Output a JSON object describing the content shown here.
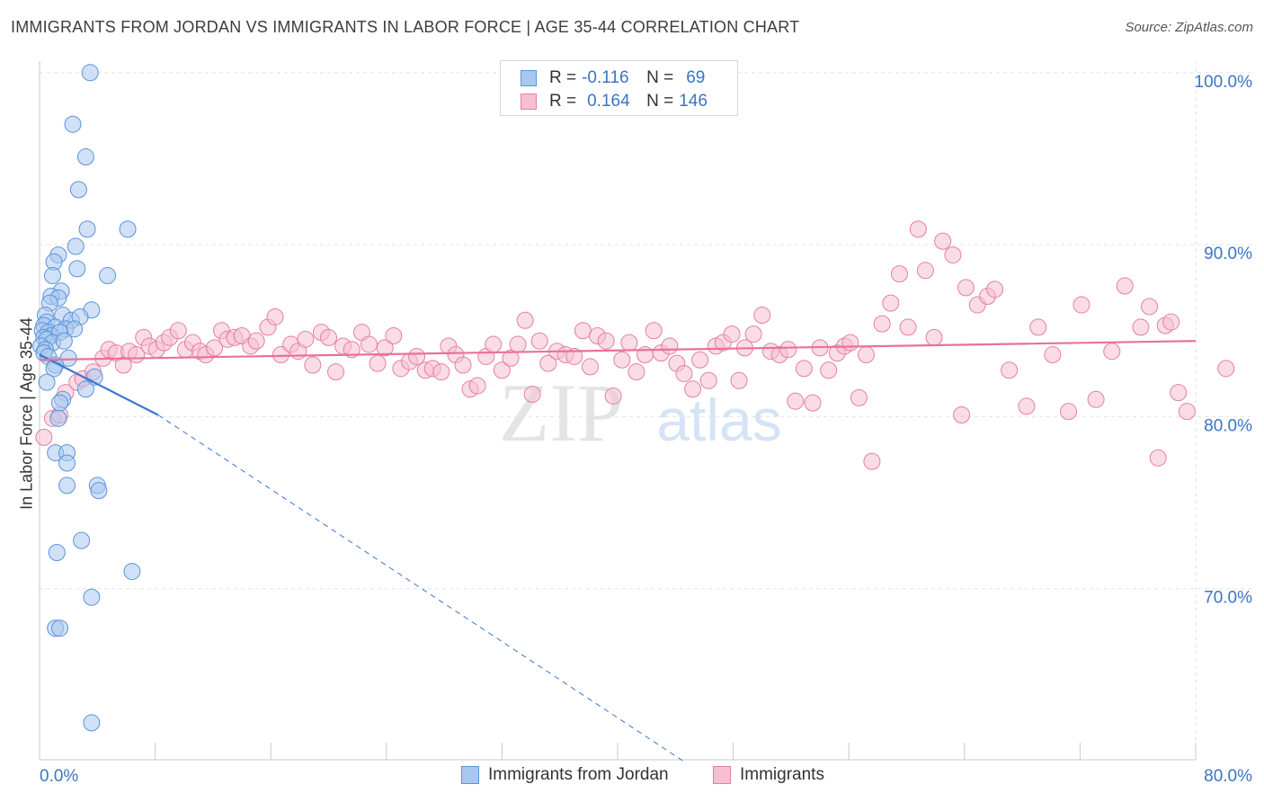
{
  "header": {
    "title": "IMMIGRANTS FROM JORDAN VS IMMIGRANTS IN LABOR FORCE | AGE 35-44 CORRELATION CHART",
    "source": "Source: ZipAtlas.com"
  },
  "watermark": {
    "zip": "ZIP",
    "atlas": "atlas"
  },
  "legend": {
    "rows": [
      {
        "r_label": "R =",
        "r_value": "-0.116",
        "n_label": "N =",
        "n_value": "69"
      },
      {
        "r_label": "R =",
        "r_value": "0.164",
        "n_label": "N =",
        "n_value": "146"
      }
    ]
  },
  "bottom_legend": [
    {
      "label": "Immigrants from Jordan"
    },
    {
      "label": "Immigrants"
    }
  ],
  "colors": {
    "blue_fill": "#a9c8f0",
    "blue_stroke": "#5b93d8",
    "blue_line": "#3a75d0",
    "pink_fill": "#f6c0d2",
    "pink_stroke": "#e57fa2",
    "pink_line": "#e8719a",
    "tick_text": "#3a75c4",
    "grid": "#e2e2e2"
  },
  "chart_data": {
    "type": "scatter",
    "title": "IMMIGRANTS FROM JORDAN VS IMMIGRANTS IN LABOR FORCE | AGE 35-44 CORRELATION CHART",
    "xlabel": "",
    "ylabel": "In Labor Force | Age 35-44",
    "xlim": [
      0,
      80
    ],
    "ylim": [
      60,
      102
    ],
    "x_tick_labels": [
      "0.0%",
      "80.0%"
    ],
    "y_ticks": [
      70,
      80,
      90,
      100
    ],
    "y_tick_labels": [
      "70.0%",
      "80.0%",
      "90.0%",
      "100.0%"
    ],
    "grid": true,
    "series": [
      {
        "name": "Immigrants from Jordan",
        "R": -0.116,
        "N": 69,
        "trend": {
          "solid": [
            [
              0,
              83.6
            ],
            [
              8.2,
              80.1
            ]
          ],
          "dashed": [
            [
              8.2,
              80.1
            ],
            [
              44.5,
              60
            ]
          ]
        },
        "points": [
          [
            3.5,
            100.0
          ],
          [
            2.3,
            97.0
          ],
          [
            3.2,
            95.1
          ],
          [
            2.7,
            93.2
          ],
          [
            3.3,
            90.9
          ],
          [
            6.1,
            90.9
          ],
          [
            2.5,
            89.9
          ],
          [
            1.3,
            89.4
          ],
          [
            1.0,
            89.0
          ],
          [
            2.6,
            88.6
          ],
          [
            0.9,
            88.2
          ],
          [
            4.7,
            88.2
          ],
          [
            1.5,
            87.3
          ],
          [
            0.8,
            87.0
          ],
          [
            1.3,
            86.9
          ],
          [
            0.7,
            86.6
          ],
          [
            3.6,
            86.2
          ],
          [
            0.4,
            85.9
          ],
          [
            1.6,
            85.9
          ],
          [
            2.2,
            85.6
          ],
          [
            2.8,
            85.8
          ],
          [
            0.5,
            85.5
          ],
          [
            0.3,
            85.3
          ],
          [
            1.1,
            85.2
          ],
          [
            1.8,
            85.1
          ],
          [
            2.4,
            85.1
          ],
          [
            0.2,
            85.0
          ],
          [
            0.6,
            84.9
          ],
          [
            0.8,
            84.7
          ],
          [
            1.4,
            84.9
          ],
          [
            0.3,
            84.6
          ],
          [
            0.5,
            84.5
          ],
          [
            0.9,
            84.3
          ],
          [
            1.7,
            84.4
          ],
          [
            0.1,
            84.1
          ],
          [
            0.4,
            83.9
          ],
          [
            0.3,
            83.7
          ],
          [
            0.6,
            83.5
          ],
          [
            2.0,
            83.4
          ],
          [
            1.1,
            83.0
          ],
          [
            1.0,
            82.8
          ],
          [
            3.8,
            82.3
          ],
          [
            0.5,
            82.0
          ],
          [
            3.2,
            81.6
          ],
          [
            1.6,
            81.0
          ],
          [
            1.4,
            80.8
          ],
          [
            1.3,
            79.9
          ],
          [
            1.1,
            77.9
          ],
          [
            1.9,
            77.9
          ],
          [
            1.9,
            77.3
          ],
          [
            1.9,
            76.0
          ],
          [
            4.0,
            76.0
          ],
          [
            4.1,
            75.7
          ],
          [
            2.9,
            72.8
          ],
          [
            1.2,
            72.1
          ],
          [
            6.4,
            71.0
          ],
          [
            3.6,
            69.5
          ],
          [
            1.1,
            67.7
          ],
          [
            1.4,
            67.7
          ],
          [
            3.6,
            62.2
          ]
        ]
      },
      {
        "name": "Immigrants",
        "R": 0.164,
        "N": 146,
        "trend": {
          "solid": [
            [
              0,
              83.3
            ],
            [
              80,
              84.4
            ]
          ]
        },
        "points": [
          [
            0.3,
            78.8
          ],
          [
            0.9,
            79.9
          ],
          [
            1.4,
            80.1
          ],
          [
            1.8,
            81.4
          ],
          [
            2.6,
            82.0
          ],
          [
            3.0,
            82.2
          ],
          [
            3.7,
            82.6
          ],
          [
            4.4,
            83.4
          ],
          [
            4.8,
            83.9
          ],
          [
            5.3,
            83.7
          ],
          [
            5.8,
            83.0
          ],
          [
            6.2,
            83.8
          ],
          [
            6.7,
            83.6
          ],
          [
            7.2,
            84.6
          ],
          [
            7.6,
            84.1
          ],
          [
            8.1,
            83.9
          ],
          [
            8.6,
            84.3
          ],
          [
            9.0,
            84.6
          ],
          [
            9.6,
            85.0
          ],
          [
            10.1,
            83.9
          ],
          [
            10.6,
            84.3
          ],
          [
            11.1,
            83.8
          ],
          [
            11.5,
            83.6
          ],
          [
            12.1,
            84.0
          ],
          [
            12.6,
            85.0
          ],
          [
            13.0,
            84.5
          ],
          [
            13.5,
            84.6
          ],
          [
            14.0,
            84.7
          ],
          [
            14.6,
            84.1
          ],
          [
            15.0,
            84.4
          ],
          [
            15.8,
            85.2
          ],
          [
            16.3,
            85.8
          ],
          [
            16.7,
            83.6
          ],
          [
            17.4,
            84.2
          ],
          [
            17.9,
            83.8
          ],
          [
            18.4,
            84.5
          ],
          [
            18.9,
            83.0
          ],
          [
            19.5,
            84.9
          ],
          [
            20.0,
            84.6
          ],
          [
            20.5,
            82.6
          ],
          [
            21.0,
            84.1
          ],
          [
            21.6,
            83.9
          ],
          [
            22.3,
            84.9
          ],
          [
            22.8,
            84.2
          ],
          [
            23.4,
            83.1
          ],
          [
            23.9,
            84.0
          ],
          [
            24.5,
            84.7
          ],
          [
            25.0,
            82.8
          ],
          [
            25.6,
            83.2
          ],
          [
            26.1,
            83.5
          ],
          [
            26.7,
            82.7
          ],
          [
            27.2,
            82.8
          ],
          [
            27.8,
            82.6
          ],
          [
            28.3,
            84.1
          ],
          [
            28.8,
            83.6
          ],
          [
            29.3,
            83.0
          ],
          [
            29.8,
            81.6
          ],
          [
            30.3,
            81.8
          ],
          [
            30.9,
            83.5
          ],
          [
            31.4,
            84.2
          ],
          [
            32.0,
            82.7
          ],
          [
            32.6,
            83.4
          ],
          [
            33.1,
            84.2
          ],
          [
            33.6,
            85.6
          ],
          [
            34.1,
            81.3
          ],
          [
            34.6,
            84.4
          ],
          [
            35.2,
            83.1
          ],
          [
            35.8,
            83.8
          ],
          [
            36.4,
            83.6
          ],
          [
            37.0,
            83.5
          ],
          [
            37.6,
            85.0
          ],
          [
            38.1,
            82.9
          ],
          [
            38.6,
            84.7
          ],
          [
            39.2,
            84.4
          ],
          [
            39.7,
            81.2
          ],
          [
            40.3,
            83.3
          ],
          [
            40.8,
            84.3
          ],
          [
            41.3,
            82.6
          ],
          [
            41.9,
            83.6
          ],
          [
            42.5,
            85.0
          ],
          [
            43.0,
            83.7
          ],
          [
            43.6,
            84.1
          ],
          [
            44.1,
            83.1
          ],
          [
            44.6,
            82.5
          ],
          [
            45.2,
            81.6
          ],
          [
            45.7,
            83.3
          ],
          [
            46.3,
            82.1
          ],
          [
            46.8,
            84.1
          ],
          [
            47.3,
            84.3
          ],
          [
            47.9,
            84.8
          ],
          [
            48.4,
            82.1
          ],
          [
            48.8,
            84.0
          ],
          [
            49.4,
            84.8
          ],
          [
            50.0,
            85.9
          ],
          [
            50.6,
            83.8
          ],
          [
            51.2,
            83.6
          ],
          [
            51.8,
            83.9
          ],
          [
            52.3,
            80.9
          ],
          [
            52.9,
            82.8
          ],
          [
            53.5,
            80.8
          ],
          [
            54.0,
            84.0
          ],
          [
            54.6,
            82.7
          ],
          [
            55.2,
            83.7
          ],
          [
            55.7,
            84.1
          ],
          [
            56.1,
            84.3
          ],
          [
            56.7,
            81.1
          ],
          [
            57.2,
            83.6
          ],
          [
            57.6,
            77.4
          ],
          [
            58.3,
            85.4
          ],
          [
            58.9,
            86.6
          ],
          [
            59.5,
            88.3
          ],
          [
            60.1,
            85.2
          ],
          [
            60.8,
            90.9
          ],
          [
            61.3,
            88.5
          ],
          [
            61.9,
            84.6
          ],
          [
            62.5,
            90.2
          ],
          [
            63.2,
            89.4
          ],
          [
            63.8,
            80.1
          ],
          [
            64.1,
            87.5
          ],
          [
            64.9,
            86.5
          ],
          [
            65.6,
            87.0
          ],
          [
            66.1,
            87.4
          ],
          [
            67.1,
            82.7
          ],
          [
            68.3,
            80.6
          ],
          [
            69.1,
            85.2
          ],
          [
            70.1,
            83.6
          ],
          [
            71.2,
            80.3
          ],
          [
            72.1,
            86.5
          ],
          [
            73.1,
            81.0
          ],
          [
            74.2,
            83.8
          ],
          [
            75.1,
            87.6
          ],
          [
            76.2,
            85.2
          ],
          [
            76.8,
            86.4
          ],
          [
            77.4,
            77.6
          ],
          [
            77.9,
            85.3
          ],
          [
            78.3,
            85.5
          ],
          [
            78.8,
            81.4
          ],
          [
            79.4,
            80.3
          ],
          [
            82.1,
            82.8
          ]
        ]
      }
    ]
  }
}
